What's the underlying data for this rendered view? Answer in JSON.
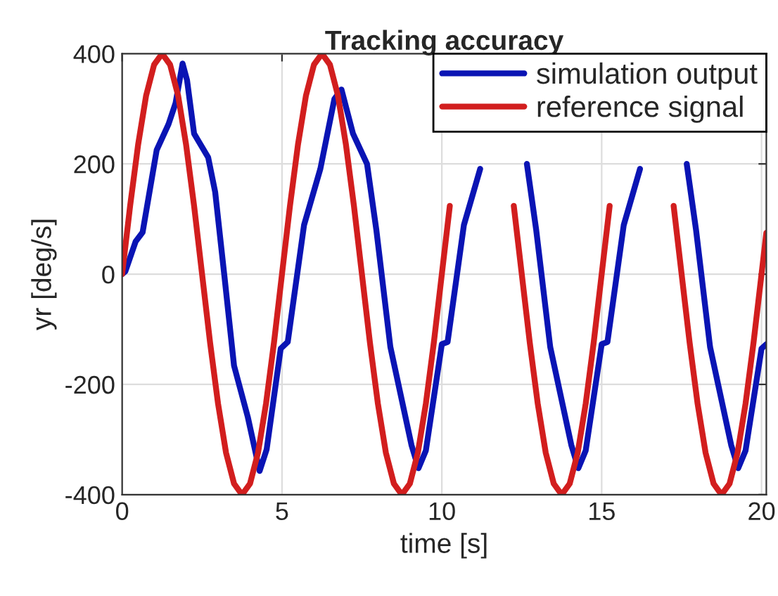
{
  "chart_data": {
    "type": "line",
    "title": "Tracking accuracy",
    "xlabel": "time [s]",
    "ylabel": "yr [deg/s]",
    "xlim": [
      0,
      20.15
    ],
    "xticks": [
      0,
      5,
      10,
      15,
      20
    ],
    "ylim": [
      -400,
      400
    ],
    "yticks": [
      -400,
      -200,
      0,
      200,
      400
    ],
    "grid": true,
    "legend": "top right",
    "line_style": "solid",
    "series": [
      {
        "name": "simulation output",
        "color": "#0a14b4",
        "x": [
          0,
          0.1,
          0.42,
          0.64,
          1.08,
          1.45,
          1.67,
          1.89,
          2.03,
          2.25,
          2.69,
          2.91,
          3.2,
          3.5,
          3.93,
          4.3,
          4.52,
          4.96,
          5.18,
          5.69,
          6.2,
          6.64,
          6.86,
          7.22,
          7.66,
          7.95,
          8.39,
          9.05,
          9.27,
          9.5,
          10.0,
          10.18,
          10.69,
          11.2,
          12.0,
          12.66,
          12.95,
          13.39,
          14.05,
          14.27,
          14.5,
          15.0,
          15.18,
          15.69,
          16.2,
          17.0,
          17.66,
          17.95,
          18.39,
          19.05,
          19.27,
          19.5,
          20.0,
          20.15
        ],
        "values": [
          0,
          5,
          59,
          76,
          225,
          272,
          310,
          382,
          352,
          255,
          212,
          149,
          -4,
          -166,
          -259,
          -357,
          -318,
          -135,
          -123,
          89,
          191,
          318,
          335,
          255,
          200,
          81,
          -132,
          -310,
          -352,
          -320,
          -127,
          -123,
          89,
          191,
          null,
          200,
          81,
          -132,
          -310,
          -352,
          -320,
          -127,
          -123,
          89,
          191,
          null,
          200,
          81,
          -132,
          -310,
          -352,
          -320,
          -135,
          -127
        ]
      },
      {
        "name": "reference signal",
        "color": "#d21e1e",
        "x": [
          0,
          0.25,
          0.5,
          0.75,
          1,
          1.25,
          1.5,
          1.75,
          2,
          2.25,
          2.5,
          2.75,
          3,
          3.25,
          3.5,
          3.75,
          4,
          4.25,
          4.5,
          4.75,
          5,
          5.25,
          5.5,
          5.75,
          6,
          6.25,
          6.5,
          6.75,
          7,
          7.25,
          7.5,
          7.75,
          8,
          8.25,
          8.5,
          8.75,
          9,
          9.25,
          9.5,
          9.75,
          10,
          10.25,
          10.5,
          10.75,
          11,
          11.25,
          11.5,
          11.75,
          12,
          12.25,
          12.5,
          12.75,
          13,
          13.25,
          13.5,
          13.75,
          14,
          14.25,
          14.5,
          14.75,
          15,
          15.25,
          15.5,
          15.75,
          16,
          16.25,
          16.5,
          16.75,
          17,
          17.25,
          17.5,
          17.75,
          18,
          18.25,
          18.5,
          18.75,
          19,
          19.25,
          19.5,
          19.75,
          20,
          20.15
        ],
        "values": [
          0,
          124,
          235,
          324,
          380,
          400,
          380,
          324,
          235,
          124,
          0,
          -124,
          -235,
          -324,
          -380,
          -400,
          -380,
          -324,
          -235,
          -124,
          0,
          124,
          235,
          324,
          380,
          400,
          380,
          324,
          235,
          124,
          0,
          -124,
          -235,
          -324,
          -380,
          -400,
          -380,
          -324,
          -235,
          -124,
          0,
          124,
          null,
          null,
          null,
          null,
          null,
          null,
          null,
          124,
          0,
          -124,
          -235,
          -324,
          -380,
          -400,
          -380,
          -324,
          -235,
          -124,
          0,
          124,
          null,
          null,
          null,
          null,
          null,
          null,
          null,
          124,
          0,
          -124,
          -235,
          -324,
          -380,
          -400,
          -380,
          -324,
          -235,
          -124,
          0,
          75
        ]
      }
    ]
  }
}
